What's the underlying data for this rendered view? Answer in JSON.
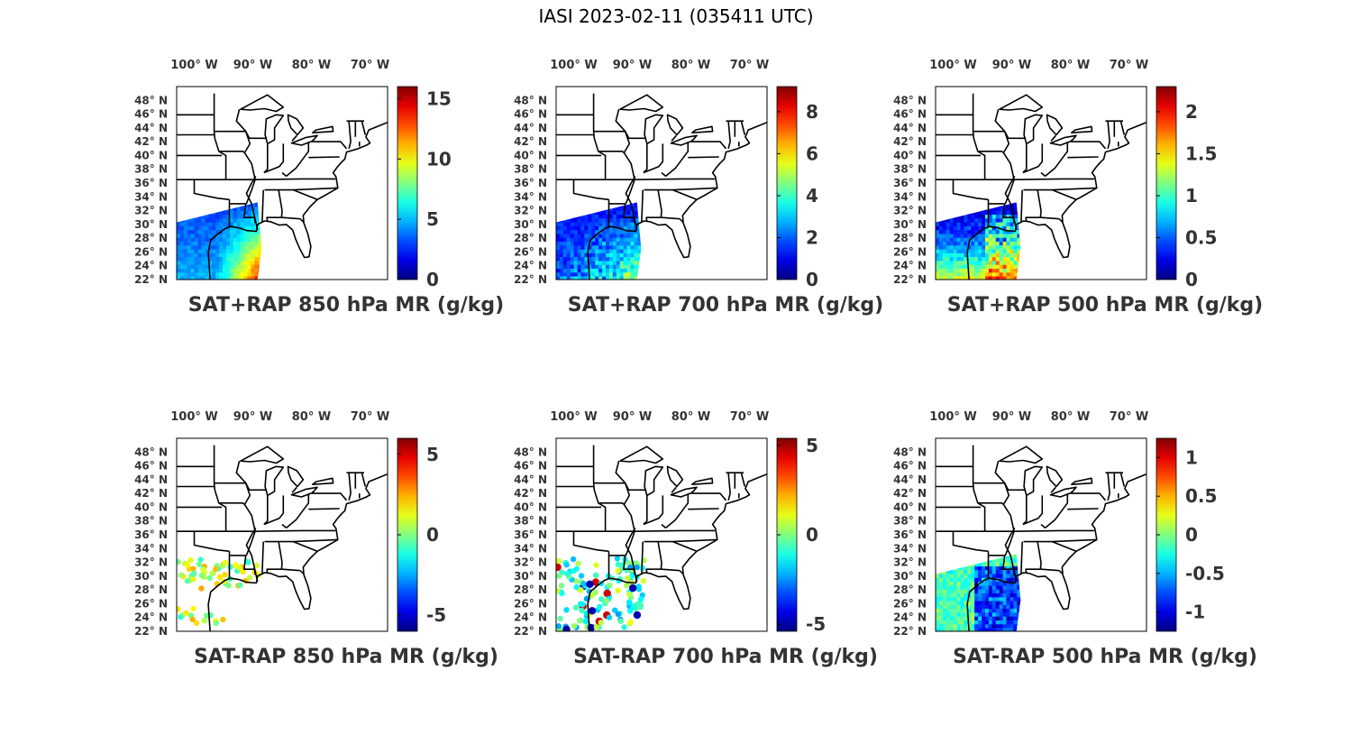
{
  "figure_title": "IASI 2023-02-11 (035411 UTC)",
  "lon_ticks": [
    {
      "value": -100,
      "label": "100° W"
    },
    {
      "value": -90,
      "label": "90° W"
    },
    {
      "value": -80,
      "label": "80° W"
    },
    {
      "value": -70,
      "label": "70° W"
    }
  ],
  "lat_ticks": [
    {
      "value": 48,
      "label": "48° N"
    },
    {
      "value": 46,
      "label": "46° N"
    },
    {
      "value": 44,
      "label": "44° N"
    },
    {
      "value": 42,
      "label": "42° N"
    },
    {
      "value": 40,
      "label": "40° N"
    },
    {
      "value": 38,
      "label": "38° N"
    },
    {
      "value": 36,
      "label": "36° N"
    },
    {
      "value": 34,
      "label": "34° N"
    },
    {
      "value": 32,
      "label": "32° N"
    },
    {
      "value": 30,
      "label": "30° N"
    },
    {
      "value": 28,
      "label": "28° N"
    },
    {
      "value": 26,
      "label": "26° N"
    },
    {
      "value": 24,
      "label": "24° N"
    },
    {
      "value": 22,
      "label": "22° N"
    }
  ],
  "map_extent": {
    "lon": [
      -103,
      -67
    ],
    "lat": [
      22,
      50
    ]
  },
  "colormap": "jet",
  "panels": [
    {
      "id": "sat-plus-rap-850",
      "title": "SAT+RAP 850 hPa MR (g/kg)",
      "colorbar": {
        "min": 0,
        "max": 16,
        "ticks": [
          {
            "value": 0,
            "label": "0"
          },
          {
            "value": 5,
            "label": "5"
          },
          {
            "value": 10,
            "label": "10"
          },
          {
            "value": 15,
            "label": "15"
          }
        ]
      },
      "plot_style": "swath"
    },
    {
      "id": "sat-plus-rap-700",
      "title": "SAT+RAP 700 hPa MR (g/kg)",
      "colorbar": {
        "min": 0,
        "max": 9.2,
        "ticks": [
          {
            "value": 0,
            "label": "0"
          },
          {
            "value": 2,
            "label": "2"
          },
          {
            "value": 4,
            "label": "4"
          },
          {
            "value": 6,
            "label": "6"
          },
          {
            "value": 8,
            "label": "8"
          }
        ]
      },
      "plot_style": "swath"
    },
    {
      "id": "sat-plus-rap-500",
      "title": "SAT+RAP 500 hPa MR (g/kg)",
      "colorbar": {
        "min": 0,
        "max": 2.3,
        "ticks": [
          {
            "value": 0,
            "label": "0"
          },
          {
            "value": 0.5,
            "label": "0.5"
          },
          {
            "value": 1,
            "label": "1"
          },
          {
            "value": 1.5,
            "label": "1.5"
          },
          {
            "value": 2,
            "label": "2"
          }
        ]
      },
      "plot_style": "swath"
    },
    {
      "id": "sat-minus-rap-850",
      "title": "SAT-RAP 850 hPa MR (g/kg)",
      "colorbar": {
        "min": -6,
        "max": 6,
        "ticks": [
          {
            "value": -5,
            "label": "-5"
          },
          {
            "value": 0,
            "label": "0"
          },
          {
            "value": 5,
            "label": "5"
          }
        ]
      },
      "plot_style": "dots"
    },
    {
      "id": "sat-minus-rap-700",
      "title": "SAT-RAP 700 hPa MR (g/kg)",
      "colorbar": {
        "min": -5.4,
        "max": 5.4,
        "ticks": [
          {
            "value": -5,
            "label": "-5"
          },
          {
            "value": 0,
            "label": "0"
          },
          {
            "value": 5,
            "label": "5"
          }
        ]
      },
      "plot_style": "dots"
    },
    {
      "id": "sat-minus-rap-500",
      "title": "SAT-RAP 500 hPa MR (g/kg)",
      "colorbar": {
        "min": -1.25,
        "max": 1.25,
        "ticks": [
          {
            "value": -1,
            "label": "-1"
          },
          {
            "value": -0.5,
            "label": "-0.5"
          },
          {
            "value": 0,
            "label": "0"
          },
          {
            "value": 0.5,
            "label": "0.5"
          },
          {
            "value": 1,
            "label": "1"
          }
        ]
      },
      "plot_style": "swath"
    }
  ]
}
